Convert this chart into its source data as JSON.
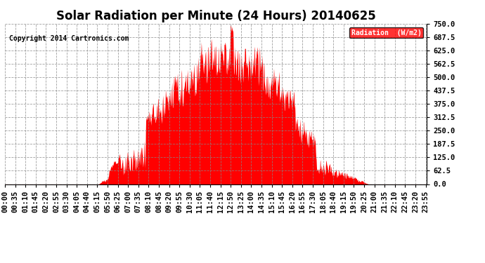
{
  "title": "Solar Radiation per Minute (24 Hours) 20140625",
  "copyright_text": "Copyright 2014 Cartronics.com",
  "fill_color": "#FF0000",
  "line_color": "#FF0000",
  "bg_color": "#FFFFFF",
  "grid_color": "#888888",
  "legend_bg": "#FF0000",
  "legend_text": "Radiation  (W/m2)",
  "ylim": [
    0,
    750
  ],
  "yticks": [
    0.0,
    62.5,
    125.0,
    187.5,
    250.0,
    312.5,
    375.0,
    437.5,
    500.0,
    562.5,
    625.0,
    687.5,
    750.0
  ],
  "title_fontsize": 12,
  "tick_fontsize": 7.5,
  "copyright_fontsize": 7,
  "dpi": 100,
  "figsize": [
    6.9,
    3.75
  ]
}
